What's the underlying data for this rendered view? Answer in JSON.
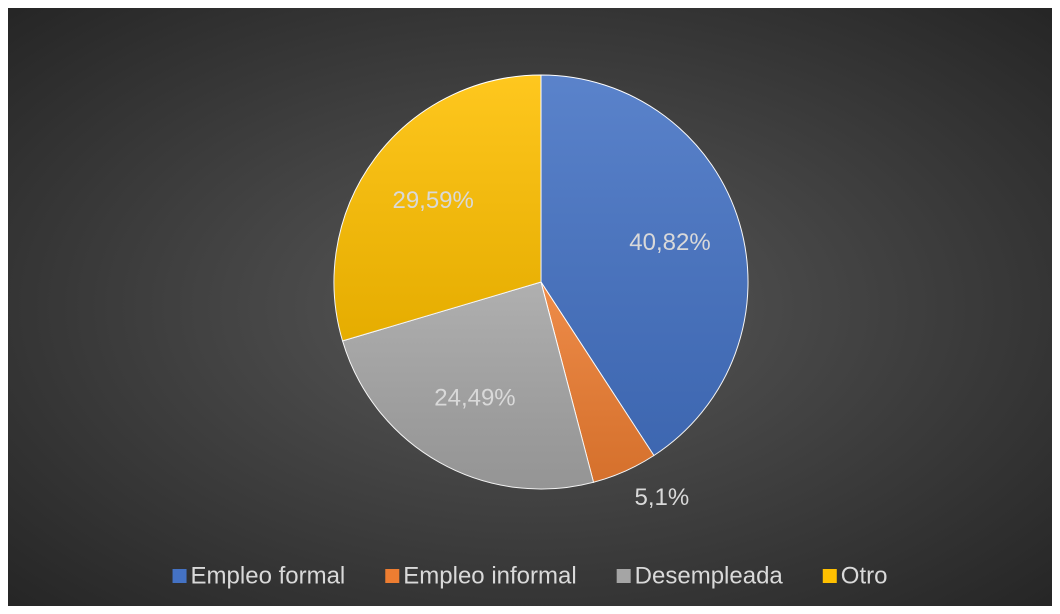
{
  "chart_data": {
    "type": "pie",
    "categories": [
      "Empleo formal",
      "Empleo informal",
      "Desempleada",
      "Otro"
    ],
    "values": [
      40.82,
      5.1,
      24.49,
      29.59
    ],
    "value_labels": [
      "40,82%",
      "5,1%",
      "24,49%",
      "29,59%"
    ],
    "colors": [
      "#4472c4",
      "#ed7d31",
      "#a5a5a5",
      "#ffc000"
    ],
    "legend": "bottom"
  }
}
